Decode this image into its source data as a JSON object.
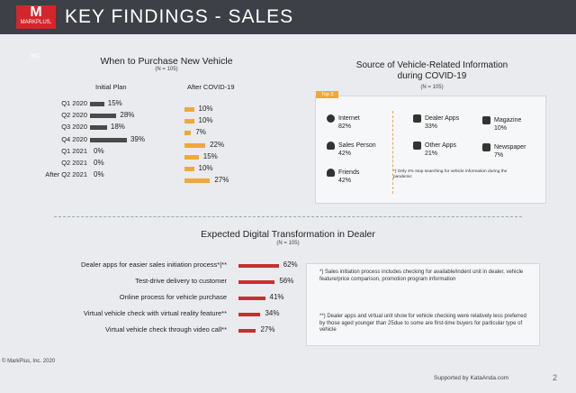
{
  "header": {
    "logo_text": "MARKPLUS, INC.",
    "title": "KEY FINDINGS - SALES"
  },
  "purchase_chart": {
    "title": "When to Purchase New Vehicle",
    "subtitle": "(N = 105)",
    "col_initial": "Initial Plan",
    "col_after": "After COVID-19",
    "colors": {
      "initial": "#4a4a4a",
      "after": "#f0a83c"
    },
    "rows": [
      {
        "label": "Q1 2020",
        "initial": "15%",
        "after": "10%"
      },
      {
        "label": "Q2 2020",
        "initial": "28%",
        "after": "10%"
      },
      {
        "label": "Q3 2020",
        "initial": "18%",
        "after": "7%"
      },
      {
        "label": "Q4 2020",
        "initial": "39%",
        "after": "22%"
      },
      {
        "label": "Q1 2021",
        "initial": "0%",
        "after": "15%"
      },
      {
        "label": "Q2 2021",
        "initial": "0%",
        "after": "10%"
      },
      {
        "label": "After Q2 2021",
        "initial": "0%",
        "after": "27%"
      }
    ]
  },
  "source_panel": {
    "title": "Source of Vehicle-Related Information during COVID-19",
    "subtitle": "(N = 105)",
    "tag": "Top 3",
    "items": [
      {
        "label": "Internet",
        "value": "82%",
        "icon": "globe-icon"
      },
      {
        "label": "Sales Person",
        "value": "42%",
        "icon": "person-icon"
      },
      {
        "label": "Friends",
        "value": "42%",
        "icon": "friends-icon"
      },
      {
        "label": "Dealer Apps",
        "value": "33%",
        "icon": "phone-icon"
      },
      {
        "label": "Other Apps",
        "value": "21%",
        "icon": "apps-icon"
      },
      {
        "label": "Magazine",
        "value": "10%",
        "icon": "magazine-icon"
      },
      {
        "label": "Newspaper",
        "value": "7%",
        "icon": "newspaper-icon"
      }
    ],
    "note": "*) Only 4% stop searching for vehicle information during the pandemic"
  },
  "digital_chart": {
    "title": "Expected Digital Transformation in Dealer",
    "subtitle": "(N = 105)",
    "color": "#c8302d",
    "rows": [
      {
        "label": "Dealer apps for easier sales initiation process*|**",
        "value": "62%"
      },
      {
        "label": "Test-drive delivery to customer",
        "value": "56%"
      },
      {
        "label": "Online process for vehicle purchase",
        "value": "41%"
      },
      {
        "label": "Virtual vehicle check with virtual reality feature**",
        "value": "34%"
      },
      {
        "label": "Virtual vehicle check through video call**",
        "value": "27%"
      }
    ],
    "notes": [
      "*) Sales initiation process includes checking for available/indent unit in dealer, vehicle feature/price comparison, promotion program information",
      "**) Dealer apps and virtual unit show for vehicle checking were relatively less preferred by those aged younger than 25due to some are first-time buyers for particular type of vehicle"
    ]
  },
  "footer": {
    "copyright": "© MarkPlus, Inc. 2020",
    "supported_by": "Supported by KataAnda.com",
    "page": "2"
  }
}
